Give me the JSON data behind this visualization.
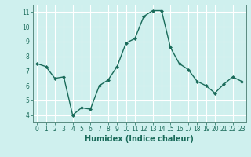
{
  "x": [
    0,
    1,
    2,
    3,
    4,
    5,
    6,
    7,
    8,
    9,
    10,
    11,
    12,
    13,
    14,
    15,
    16,
    17,
    18,
    19,
    20,
    21,
    22,
    23
  ],
  "y": [
    7.5,
    7.3,
    6.5,
    6.6,
    4.0,
    4.5,
    4.4,
    6.0,
    6.4,
    7.3,
    8.9,
    9.2,
    10.7,
    11.1,
    11.1,
    8.6,
    7.5,
    7.1,
    6.3,
    6.0,
    5.5,
    6.1,
    6.6,
    6.3
  ],
  "line_color": "#1a6b5a",
  "marker": "D",
  "markersize": 2,
  "linewidth": 1.0,
  "background_color": "#cff0ee",
  "grid_color": "#ffffff",
  "xlabel": "Humidex (Indice chaleur)",
  "xlim": [
    -0.5,
    23.5
  ],
  "ylim": [
    3.5,
    11.5
  ],
  "yticks": [
    4,
    5,
    6,
    7,
    8,
    9,
    10,
    11
  ],
  "xticks": [
    0,
    1,
    2,
    3,
    4,
    5,
    6,
    7,
    8,
    9,
    10,
    11,
    12,
    13,
    14,
    15,
    16,
    17,
    18,
    19,
    20,
    21,
    22,
    23
  ],
  "tick_labelsize": 5.5,
  "xlabel_fontsize": 7,
  "xlabel_fontweight": "bold",
  "spine_color": "#5a8a80",
  "tick_color": "#1a6b5a"
}
